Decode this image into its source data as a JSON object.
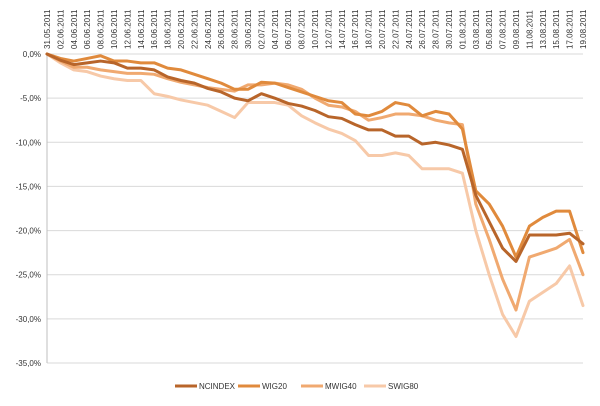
{
  "chart_data": {
    "type": "line",
    "x": [
      "31.05.2011",
      "02.06.2011",
      "04.06.2011",
      "06.06.2011",
      "08.06.2011",
      "10.06.2011",
      "12.06.2011",
      "14.06.2011",
      "16.06.2011",
      "18.06.2011",
      "20.06.2011",
      "22.06.2011",
      "24.06.2011",
      "26.06.2011",
      "28.06.2011",
      "30.06.2011",
      "02.07.2011",
      "04.07.2011",
      "06.07.2011",
      "08.07.2011",
      "10.07.2011",
      "12.07.2011",
      "14.07.2011",
      "16.07.2011",
      "18.07.2011",
      "20.07.2011",
      "22.07.2011",
      "24.07.2011",
      "26.07.2011",
      "28.07.2011",
      "30.07.2011",
      "01.08.2011",
      "03.08.2011",
      "05.08.2011",
      "07.08.2011",
      "09.08.2011",
      "11.08.2011",
      "13.08.2011",
      "15.08.2011",
      "17.08.2011",
      "19.08.2011"
    ],
    "ylim": [
      -35,
      0
    ],
    "yticks": [
      0,
      -5,
      -10,
      -15,
      -20,
      -25,
      -30,
      -35
    ],
    "ytick_labels": [
      "0,0%",
      "-5,0%",
      "-10,0%",
      "-15,0%",
      "-20,0%",
      "-25,0%",
      "-30,0%",
      "-35,0%"
    ],
    "grid": true,
    "legend_position": "bottom",
    "series": [
      {
        "name": "NCINDEX",
        "color": "#b8652a",
        "points": [
          [
            0,
            0
          ],
          [
            1,
            -0.7
          ],
          [
            2,
            -1.2
          ],
          [
            3,
            -1.0
          ],
          [
            4,
            -0.8
          ],
          [
            5,
            -1.0
          ],
          [
            6,
            -1.6
          ],
          [
            7,
            -1.6
          ],
          [
            8,
            -1.8
          ],
          [
            9,
            -2.6
          ],
          [
            10,
            -3.0
          ],
          [
            11,
            -3.3
          ],
          [
            12,
            -3.9
          ],
          [
            13,
            -4.3
          ],
          [
            14,
            -5.0
          ],
          [
            15,
            -5.3
          ],
          [
            16,
            -4.5
          ],
          [
            17,
            -5.0
          ],
          [
            18,
            -5.6
          ],
          [
            19,
            -5.9
          ],
          [
            20,
            -6.4
          ],
          [
            21,
            -7.1
          ],
          [
            22,
            -7.3
          ],
          [
            23,
            -8.0
          ],
          [
            24,
            -8.6
          ],
          [
            25,
            -8.6
          ],
          [
            26,
            -9.3
          ],
          [
            27,
            -9.3
          ],
          [
            28,
            -10.2
          ],
          [
            29,
            -10.0
          ],
          [
            30,
            -10.3
          ],
          [
            31,
            -10.8
          ],
          [
            32,
            -16.0
          ],
          [
            33,
            -19.0
          ],
          [
            34,
            -22.0
          ],
          [
            35,
            -23.5
          ],
          [
            36,
            -20.5
          ],
          [
            37,
            -20.5
          ],
          [
            38,
            -20.5
          ],
          [
            39,
            -20.3
          ],
          [
            40,
            -21.5
          ]
        ]
      },
      {
        "name": "WIG20",
        "color": "#e08a3c",
        "points": [
          [
            0,
            0
          ],
          [
            1,
            -0.5
          ],
          [
            2,
            -0.8
          ],
          [
            3,
            -0.5
          ],
          [
            4,
            -0.2
          ],
          [
            5,
            -0.8
          ],
          [
            6,
            -0.8
          ],
          [
            7,
            -1.0
          ],
          [
            8,
            -1.0
          ],
          [
            9,
            -1.6
          ],
          [
            10,
            -1.8
          ],
          [
            11,
            -2.3
          ],
          [
            12,
            -2.8
          ],
          [
            13,
            -3.3
          ],
          [
            14,
            -4.0
          ],
          [
            15,
            -4.0
          ],
          [
            16,
            -3.2
          ],
          [
            17,
            -3.3
          ],
          [
            18,
            -3.8
          ],
          [
            19,
            -4.3
          ],
          [
            20,
            -4.8
          ],
          [
            21,
            -5.3
          ],
          [
            22,
            -5.5
          ],
          [
            23,
            -6.8
          ],
          [
            24,
            -7.0
          ],
          [
            25,
            -6.5
          ],
          [
            26,
            -5.5
          ],
          [
            27,
            -5.8
          ],
          [
            28,
            -7.0
          ],
          [
            29,
            -6.5
          ],
          [
            30,
            -6.8
          ],
          [
            31,
            -8.5
          ],
          [
            32,
            -15.5
          ],
          [
            33,
            -17.0
          ],
          [
            34,
            -19.5
          ],
          [
            35,
            -23.0
          ],
          [
            36,
            -19.5
          ],
          [
            37,
            -18.5
          ],
          [
            38,
            -17.8
          ],
          [
            39,
            -17.8
          ],
          [
            40,
            -22.5
          ]
        ]
      },
      {
        "name": "MWIG40",
        "color": "#f0a970",
        "points": [
          [
            0,
            0
          ],
          [
            1,
            -0.8
          ],
          [
            2,
            -1.5
          ],
          [
            3,
            -1.5
          ],
          [
            4,
            -1.8
          ],
          [
            5,
            -2.0
          ],
          [
            6,
            -2.2
          ],
          [
            7,
            -2.2
          ],
          [
            8,
            -2.3
          ],
          [
            9,
            -2.8
          ],
          [
            10,
            -3.2
          ],
          [
            11,
            -3.5
          ],
          [
            12,
            -3.8
          ],
          [
            13,
            -4.0
          ],
          [
            14,
            -4.2
          ],
          [
            15,
            -3.5
          ],
          [
            16,
            -3.5
          ],
          [
            17,
            -3.3
          ],
          [
            18,
            -3.5
          ],
          [
            19,
            -4.0
          ],
          [
            20,
            -5.0
          ],
          [
            21,
            -5.8
          ],
          [
            22,
            -6.0
          ],
          [
            23,
            -6.5
          ],
          [
            24,
            -7.5
          ],
          [
            25,
            -7.2
          ],
          [
            26,
            -6.8
          ],
          [
            27,
            -6.8
          ],
          [
            28,
            -7.0
          ],
          [
            29,
            -7.5
          ],
          [
            30,
            -7.8
          ],
          [
            31,
            -8.0
          ],
          [
            32,
            -17.0
          ],
          [
            33,
            -21.0
          ],
          [
            34,
            -25.5
          ],
          [
            35,
            -29.0
          ],
          [
            36,
            -23.0
          ],
          [
            37,
            -22.5
          ],
          [
            38,
            -22.0
          ],
          [
            39,
            -21.0
          ],
          [
            40,
            -25.0
          ]
        ]
      },
      {
        "name": "SWIG80",
        "color": "#f7c9a8",
        "points": [
          [
            0,
            0
          ],
          [
            1,
            -1.0
          ],
          [
            2,
            -1.8
          ],
          [
            3,
            -2.0
          ],
          [
            4,
            -2.5
          ],
          [
            5,
            -2.8
          ],
          [
            6,
            -3.0
          ],
          [
            7,
            -3.0
          ],
          [
            8,
            -4.5
          ],
          [
            9,
            -4.8
          ],
          [
            10,
            -5.2
          ],
          [
            11,
            -5.5
          ],
          [
            12,
            -5.8
          ],
          [
            13,
            -6.5
          ],
          [
            14,
            -7.2
          ],
          [
            15,
            -5.5
          ],
          [
            16,
            -5.5
          ],
          [
            17,
            -5.5
          ],
          [
            18,
            -5.8
          ],
          [
            19,
            -7.0
          ],
          [
            20,
            -7.8
          ],
          [
            21,
            -8.5
          ],
          [
            22,
            -9.0
          ],
          [
            23,
            -9.8
          ],
          [
            24,
            -11.5
          ],
          [
            25,
            -11.5
          ],
          [
            26,
            -11.2
          ],
          [
            27,
            -11.5
          ],
          [
            28,
            -13.0
          ],
          [
            29,
            -13.0
          ],
          [
            30,
            -13.0
          ],
          [
            31,
            -13.5
          ],
          [
            32,
            -20.0
          ],
          [
            33,
            -25.0
          ],
          [
            34,
            -29.5
          ],
          [
            35,
            -32.0
          ],
          [
            36,
            -28.0
          ],
          [
            37,
            -27.0
          ],
          [
            38,
            -26.0
          ],
          [
            39,
            -24.0
          ],
          [
            40,
            -28.5
          ]
        ]
      }
    ]
  }
}
